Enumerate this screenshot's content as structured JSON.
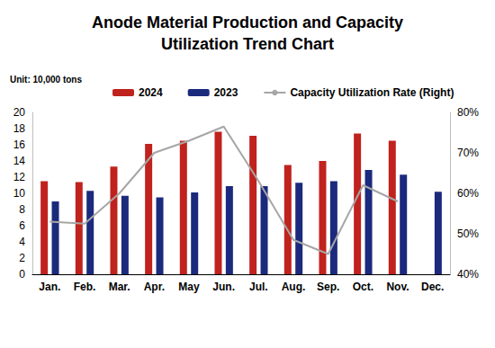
{
  "chart_data": {
    "type": "bar",
    "title": "Anode Material Production and Capacity\nUtilization Trend Chart",
    "ylabel": "Unit: 10,000 tons",
    "categories": [
      "Jan.",
      "Feb.",
      "Mar.",
      "Apr.",
      "May",
      "Jun.",
      "Jul.",
      "Aug.",
      "Sep.",
      "Oct.",
      "Nov.",
      "Dec."
    ],
    "series": [
      {
        "name": "2024",
        "type": "bar",
        "color": "#c0221e",
        "values": [
          11.5,
          11.4,
          13.3,
          16.1,
          16.5,
          17.6,
          17.1,
          13.5,
          14.0,
          17.4,
          16.5,
          null
        ]
      },
      {
        "name": "2023",
        "type": "bar",
        "color": "#1b2a7c",
        "values": [
          9.0,
          10.3,
          9.7,
          9.5,
          10.1,
          10.9,
          10.9,
          11.3,
          11.5,
          12.9,
          12.3,
          10.2
        ]
      },
      {
        "name": "Capacity Utilization Rate (Right)",
        "type": "line",
        "axis": "y2",
        "color": "#a6a6a6",
        "values": [
          53,
          52.5,
          60,
          70,
          73,
          76.5,
          63,
          48.5,
          45,
          62,
          58,
          null
        ]
      }
    ],
    "ylim": [
      0,
      20
    ],
    "yticks": [
      0,
      2,
      4,
      6,
      8,
      10,
      12,
      14,
      16,
      18,
      20
    ],
    "y2lim": [
      40,
      80
    ],
    "y2ticks": [
      {
        "value": 40,
        "label": "40%"
      },
      {
        "value": 50,
        "label": "50%"
      },
      {
        "value": 60,
        "label": "60%"
      },
      {
        "value": 70,
        "label": "70%"
      },
      {
        "value": 80,
        "label": "80%"
      }
    ],
    "grid": false,
    "legend": "top"
  }
}
